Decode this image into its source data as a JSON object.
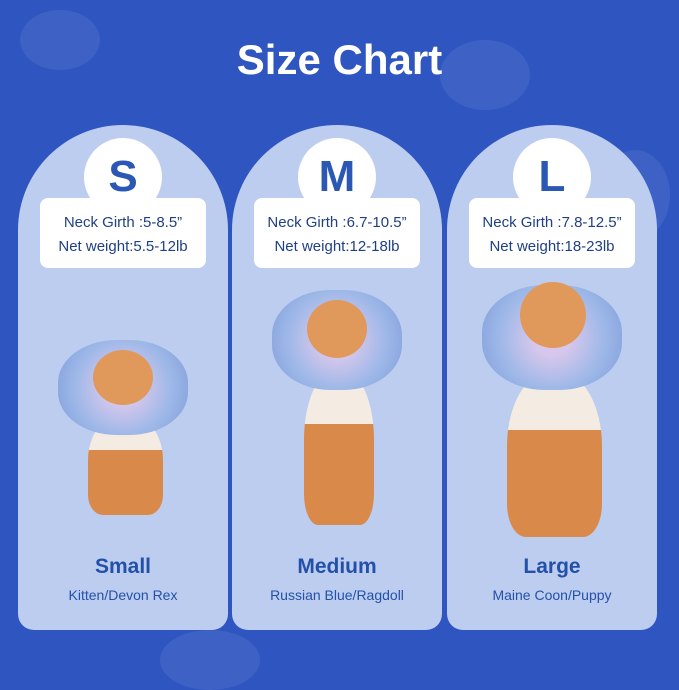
{
  "title": "Size Chart",
  "sizes": [
    {
      "letter": "S",
      "neck": "Neck Girth :5-8.5”",
      "weight": "Net weight:5.5-12lb",
      "name": "Small",
      "breed": "Kitten/Devon Rex"
    },
    {
      "letter": "M",
      "neck": "Neck Girth :6.7-10.5”",
      "weight": "Net weight:12-18lb",
      "name": "Medium",
      "breed": "Russian Blue/Ragdoll"
    },
    {
      "letter": "L",
      "neck": "Neck Girth :7.8-12.5”",
      "weight": "Net weight:18-23lb",
      "name": "Large",
      "breed": "Maine Coon/Puppy"
    }
  ],
  "colors": {
    "background": "#2f56c0",
    "card": "#bccdf0",
    "text": "#2451a8"
  }
}
